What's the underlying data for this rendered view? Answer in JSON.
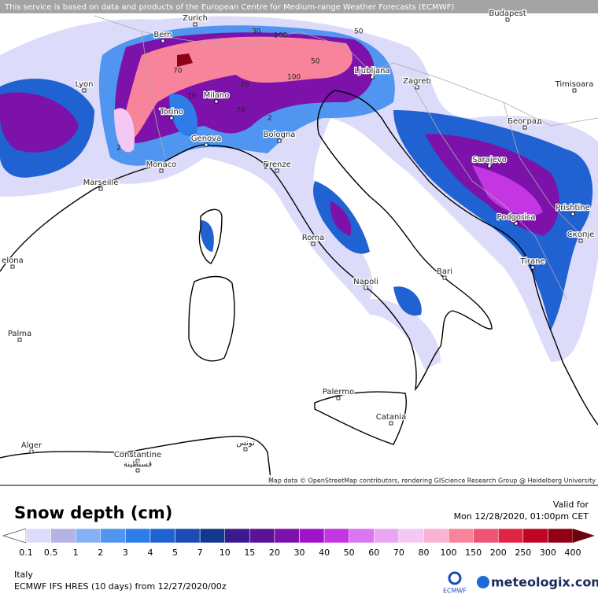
{
  "header": {
    "credit": "This service is based on data and products of the European Centre for Medium-range Weather Forecasts (ECMWF)"
  },
  "map": {
    "attribution": "Map data © OpenStreetMap contributors, rendering GIScience Research Group @ Heidelberg University",
    "cities": [
      "Budapest",
      "Zurich",
      "Bern",
      "Lyon",
      "Milano",
      "Torino",
      "Genova",
      "Monaco",
      "Marseille",
      "Bologna",
      "Firenze",
      "Roma",
      "Napoli",
      "Bari",
      "Palermo",
      "Catania",
      "Palma",
      "elona",
      "Alger",
      "Constantine",
      "قسنطينة",
      "تونس",
      "Ljubljana",
      "Zagreb",
      "Timisoara",
      "Београд",
      "Sarajevo",
      "Podgorica",
      "Prishtine",
      "Скопје",
      "Tirane"
    ],
    "contour_labels": [
      "100",
      "100",
      "70",
      "70",
      "50",
      "50",
      "30",
      "20",
      "10",
      "2",
      "2",
      "2"
    ]
  },
  "legend": {
    "title": "Snow depth (cm)",
    "ticks": [
      0.1,
      0.5,
      1,
      2,
      3,
      4,
      5,
      7,
      10,
      15,
      20,
      30,
      40,
      50,
      60,
      70,
      80,
      100,
      150,
      200,
      250,
      300,
      400
    ],
    "colors": [
      "#ffffff",
      "#dcdcfa",
      "#b4b4e4",
      "#86b0f4",
      "#5096f0",
      "#2e7ce8",
      "#2062d2",
      "#1a4cb2",
      "#12388e",
      "#3c1a8e",
      "#5c1296",
      "#7c12aa",
      "#a014c8",
      "#c436e2",
      "#da76f2",
      "#eaa6f4",
      "#f4c8f4",
      "#f8b4d2",
      "#f8849c",
      "#f05474",
      "#e02444",
      "#c00424",
      "#900014",
      "#6a0410"
    ]
  },
  "valid": {
    "label": "Valid for",
    "time": "Mon 12/28/2020, 01:00pm CET"
  },
  "footer": {
    "region": "Italy",
    "model": "ECMWF IFS HRES (10 days) from 12/27/2020/00z",
    "ecmwf": "ECMWF",
    "brand": "meteologix.com"
  }
}
